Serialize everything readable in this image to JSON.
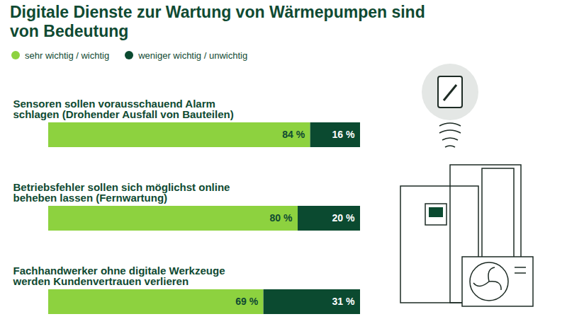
{
  "chart_data": {
    "type": "bar",
    "title": "Digitale Dienste zur Wartung von Wärmepumpen sind von Bedeutung",
    "orientation": "horizontal",
    "stacked": true,
    "data_labels": true,
    "tick_labels": false,
    "grid": false,
    "legend": "top-left",
    "categories": [
      "Sensoren sollen vorausschauend Alarm schlagen (Drohender Ausfall von Bauteilen)",
      "Betriebsfehler sollen sich möglichst online beheben lassen (Fernwartung)",
      "Fachhandwerker ohne digitale Werkzeuge werden Kundenvertrauen verlieren"
    ],
    "xlim": [
      0,
      100
    ],
    "series": [
      {
        "name": "sehr wichtig / wichtig",
        "color": "#8dd23f",
        "values": [
          84,
          80,
          69
        ],
        "value_labels": [
          "84 %",
          "80 %",
          "69 %"
        ]
      },
      {
        "name": "weniger wichtig / unwichtig",
        "color": "#0b4a30",
        "values": [
          16,
          20,
          31
        ],
        "value_labels": [
          "16 %",
          "20 %",
          "31 %"
        ]
      }
    ]
  }
}
